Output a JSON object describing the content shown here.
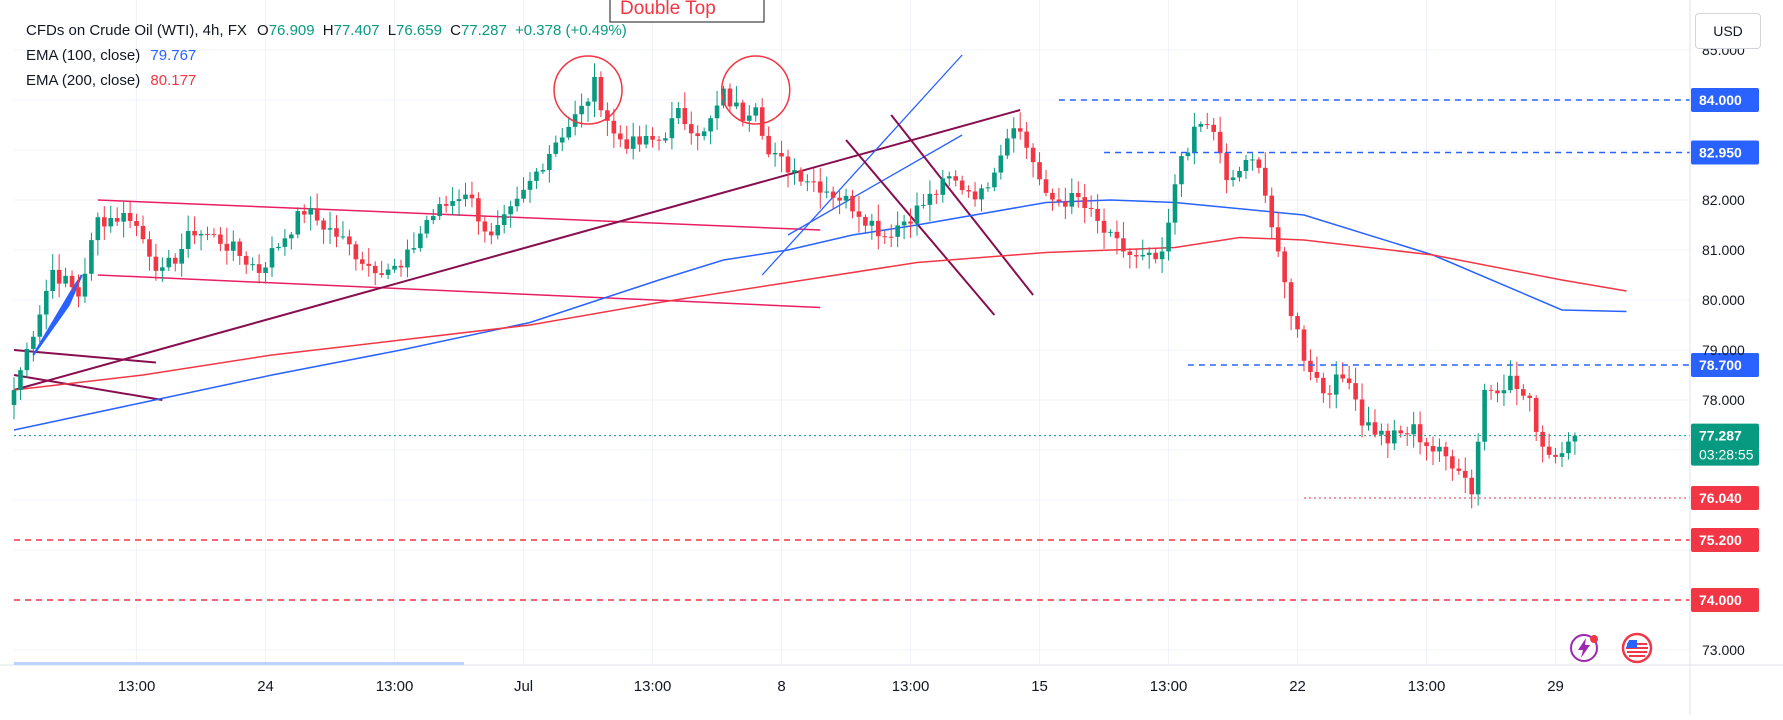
{
  "legend": {
    "symbol": "CFDs on Crude Oil (WTI), 4h, FX",
    "open_label": "O",
    "open": "76.909",
    "high_label": "H",
    "high": "77.407",
    "low_label": "L",
    "low": "76.659",
    "close_label": "C",
    "close": "77.287",
    "change": "+0.378 (+0.49%)",
    "ema100_label": "EMA (100, close)",
    "ema100_value": "79.767",
    "ema200_label": "EMA (200, close)",
    "ema200_value": "80.177"
  },
  "currency_button": "USD",
  "countdown": "03:28:55",
  "annotation_text": "Double Top",
  "icons": {
    "flash": "flash-icon",
    "flag": "us-flag-icon"
  },
  "colors": {
    "up": "#089981",
    "down": "#f23645",
    "ema100": "#2962ff",
    "ema200": "#f23645",
    "blue_level": "#2962ff",
    "red_level": "#f23645",
    "maroon": "#880e4f",
    "pink": "#e91e63",
    "grid": "#f0f3fa"
  },
  "chart_data": {
    "type": "candlestick",
    "title": "CFDs on Crude Oil (WTI), 4h, FX",
    "ylabel": "USD",
    "ylim": [
      72.8,
      85.2
    ],
    "y_ticks": [
      "73.000",
      "78.000",
      "79.000",
      "80.000",
      "81.000",
      "82.000",
      "85.000"
    ],
    "x_ticks": [
      {
        "label": "13:00",
        "index": 19
      },
      {
        "label": "24",
        "index": 39
      },
      {
        "label": "13:00",
        "index": 59
      },
      {
        "label": "Jul",
        "index": 79
      },
      {
        "label": "13:00",
        "index": 99
      },
      {
        "label": "8",
        "index": 119
      },
      {
        "label": "13:00",
        "index": 139
      },
      {
        "label": "15",
        "index": 159
      },
      {
        "label": "13:00",
        "index": 179
      },
      {
        "label": "22",
        "index": 199
      },
      {
        "label": "13:00",
        "index": 219
      },
      {
        "label": "29",
        "index": 239
      }
    ],
    "grid": true,
    "series": [
      {
        "name": "EMA (100, close)",
        "type": "line",
        "anchors": [
          [
            0,
            77.4
          ],
          [
            20,
            77.95
          ],
          [
            40,
            78.5
          ],
          [
            60,
            79.0
          ],
          [
            80,
            79.55
          ],
          [
            100,
            80.4
          ],
          [
            110,
            80.8
          ],
          [
            120,
            81.0
          ],
          [
            130,
            81.3
          ],
          [
            140,
            81.5
          ],
          [
            160,
            81.95
          ],
          [
            170,
            82.0
          ],
          [
            180,
            81.95
          ],
          [
            200,
            81.7
          ],
          [
            220,
            80.9
          ],
          [
            240,
            79.8
          ],
          [
            250,
            79.77
          ]
        ]
      },
      {
        "name": "EMA (200, close)",
        "type": "line",
        "anchors": [
          [
            0,
            78.2
          ],
          [
            20,
            78.5
          ],
          [
            40,
            78.9
          ],
          [
            60,
            79.2
          ],
          [
            80,
            79.5
          ],
          [
            100,
            79.95
          ],
          [
            120,
            80.35
          ],
          [
            140,
            80.75
          ],
          [
            160,
            80.95
          ],
          [
            180,
            81.05
          ],
          [
            190,
            81.25
          ],
          [
            200,
            81.2
          ],
          [
            220,
            80.9
          ],
          [
            240,
            80.4
          ],
          [
            250,
            80.18
          ]
        ]
      }
    ],
    "candle_anchors": [
      [
        0,
        78.2
      ],
      [
        6,
        80.6
      ],
      [
        10,
        80.1
      ],
      [
        13,
        81.6
      ],
      [
        18,
        81.7
      ],
      [
        23,
        80.5
      ],
      [
        28,
        81.4
      ],
      [
        32,
        81.2
      ],
      [
        38,
        80.6
      ],
      [
        45,
        81.8
      ],
      [
        50,
        81.3
      ],
      [
        55,
        80.7
      ],
      [
        60,
        80.6
      ],
      [
        64,
        81.6
      ],
      [
        70,
        82.2
      ],
      [
        74,
        81.2
      ],
      [
        78,
        81.9
      ],
      [
        84,
        83.2
      ],
      [
        88,
        83.8
      ],
      [
        90,
        84.3
      ],
      [
        93,
        83.3
      ],
      [
        96,
        83.1
      ],
      [
        100,
        83.2
      ],
      [
        103,
        83.7
      ],
      [
        107,
        83.3
      ],
      [
        110,
        84.1
      ],
      [
        113,
        83.7
      ],
      [
        115,
        84.0
      ],
      [
        117,
        82.9
      ],
      [
        121,
        82.6
      ],
      [
        125,
        82.3
      ],
      [
        130,
        81.9
      ],
      [
        135,
        81.3
      ],
      [
        140,
        81.8
      ],
      [
        145,
        82.4
      ],
      [
        150,
        82.1
      ],
      [
        155,
        83.6
      ],
      [
        158,
        82.8
      ],
      [
        160,
        82.0
      ],
      [
        165,
        82.0
      ],
      [
        170,
        81.2
      ],
      [
        174,
        80.8
      ],
      [
        178,
        80.8
      ],
      [
        181,
        82.9
      ],
      [
        184,
        83.5
      ],
      [
        186,
        83.4
      ],
      [
        188,
        82.3
      ],
      [
        190,
        82.6
      ],
      [
        193,
        82.8
      ],
      [
        196,
        80.8
      ],
      [
        198,
        79.8
      ],
      [
        200,
        78.9
      ],
      [
        203,
        78.2
      ],
      [
        207,
        78.5
      ],
      [
        209,
        77.6
      ],
      [
        213,
        77.2
      ],
      [
        217,
        77.4
      ],
      [
        220,
        77.0
      ],
      [
        224,
        76.7
      ],
      [
        226,
        76.2
      ],
      [
        228,
        78.2
      ],
      [
        232,
        78.4
      ],
      [
        235,
        77.9
      ],
      [
        237,
        77.1
      ],
      [
        239,
        76.9
      ],
      [
        241,
        77.3
      ],
      [
        242,
        77.287
      ]
    ],
    "levels": [
      {
        "label": "84.000",
        "value": 84.0,
        "color": "#2962ff",
        "style": "dashed"
      },
      {
        "label": "82.950",
        "value": 82.95,
        "color": "#2962ff",
        "style": "dashed"
      },
      {
        "label": "78.700",
        "value": 78.7,
        "color": "#2962ff",
        "style": "dashed"
      },
      {
        "label": "77.287",
        "value": 77.287,
        "color": "#089981",
        "style": "dotted"
      },
      {
        "label": "76.040",
        "value": 76.04,
        "color": "#f23645",
        "style": "dotted"
      },
      {
        "label": "75.200",
        "value": 75.2,
        "color": "#f23645",
        "style": "dashed"
      },
      {
        "label": "74.000",
        "value": 74.0,
        "color": "#f23645",
        "style": "dashed"
      }
    ],
    "annotations": [
      {
        "type": "circle",
        "index": 89,
        "value": 84.2
      },
      {
        "type": "circle",
        "index": 115,
        "value": 84.2
      },
      {
        "type": "text",
        "text": "Double Top"
      }
    ]
  }
}
